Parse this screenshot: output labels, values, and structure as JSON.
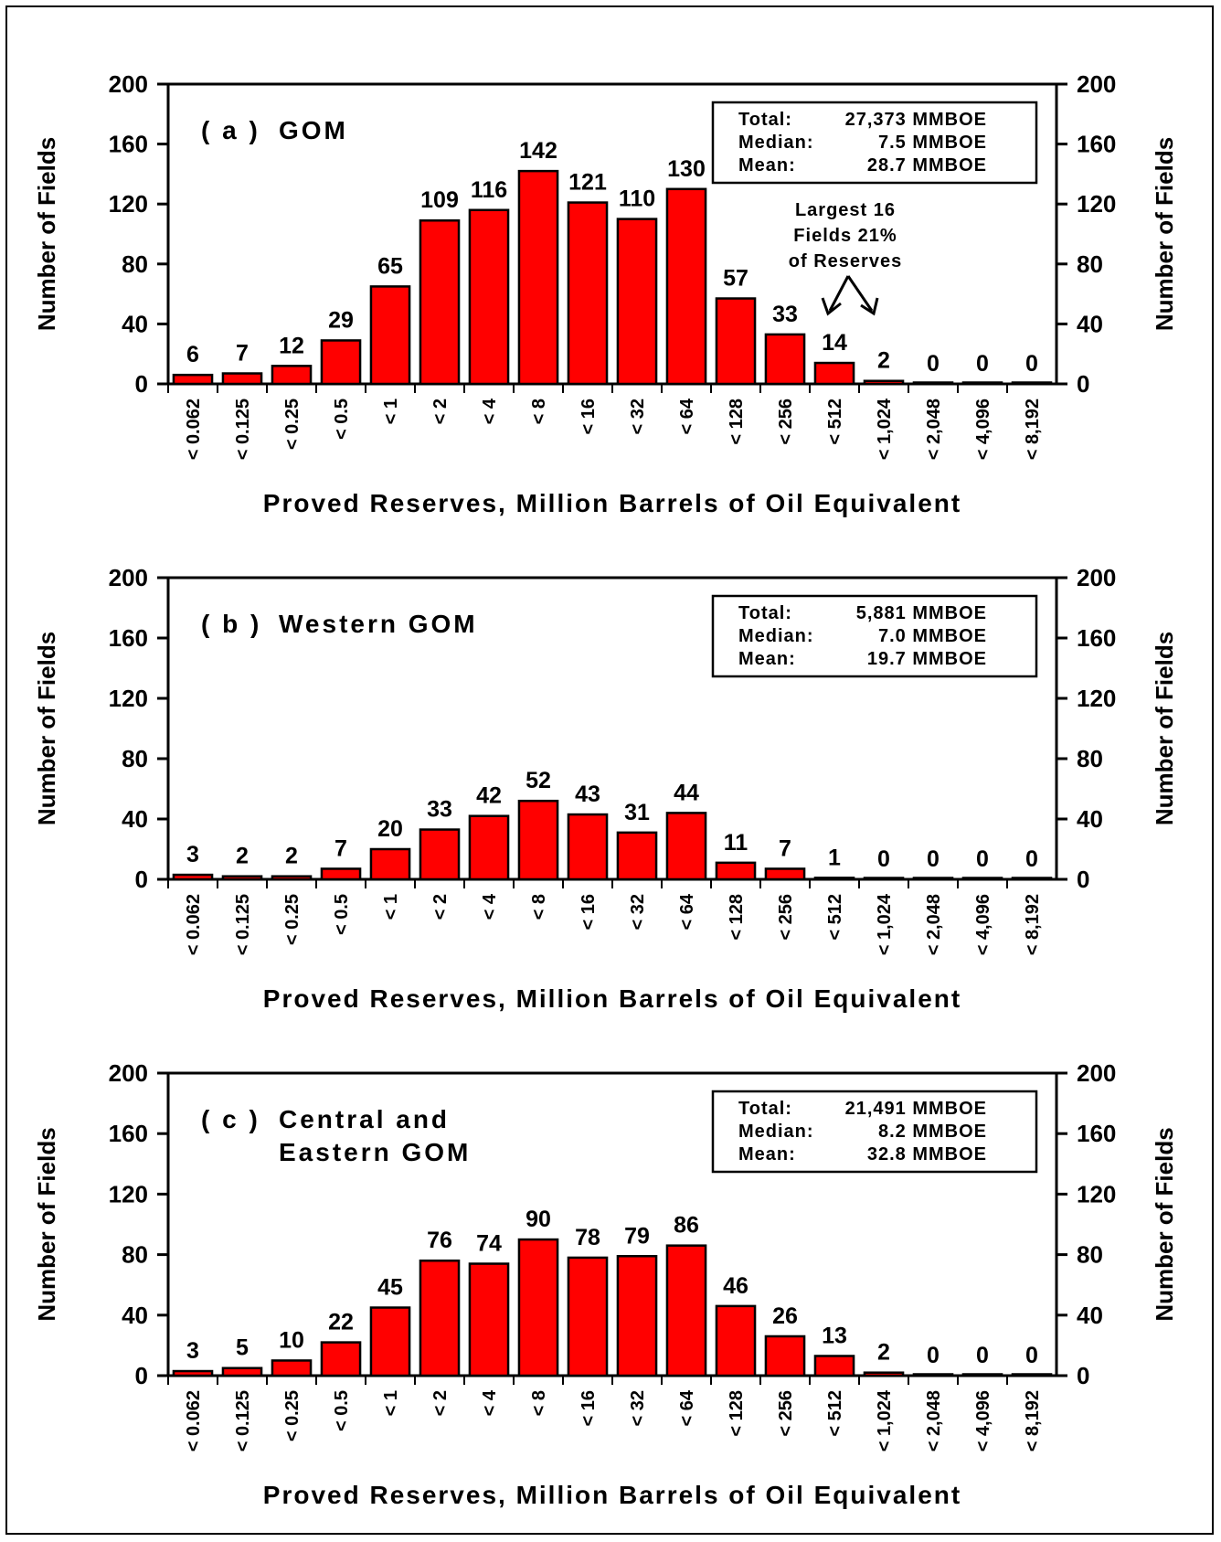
{
  "chart_data": [
    {
      "type": "bar",
      "panel_label": "( a )",
      "title_lines": [
        "GOM"
      ],
      "categories": [
        "< 0.062",
        "< 0.125",
        "< 0.25",
        "< 0.5",
        "< 1",
        "< 2",
        "< 4",
        "< 8",
        "< 16",
        "< 32",
        "< 64",
        "< 128",
        "< 256",
        "< 512",
        "< 1,024",
        "< 2,048",
        "< 4,096",
        "< 8,192"
      ],
      "values": [
        6,
        7,
        12,
        29,
        65,
        109,
        116,
        142,
        121,
        110,
        130,
        57,
        33,
        14,
        2,
        0,
        0,
        0
      ],
      "xlabel": "Proved Reserves, Million Barrels of Oil Equivalent",
      "ylabel": "Number of Fields",
      "ylabel_right": "Number of Fields",
      "ylim": [
        0,
        200
      ],
      "yticks": [
        "0",
        "40",
        "80",
        "120",
        "160",
        "200"
      ],
      "bar_color": "#ff0000",
      "stats": [
        {
          "label": "Total:",
          "value": "27,373 MMBOE"
        },
        {
          "label": "Median:",
          "value": "7.5 MMBOE"
        },
        {
          "label": "Mean:",
          "value": "28.7 MMBOE"
        }
      ],
      "annotation": [
        "Largest 16",
        "Fields 21%",
        "of Reserves"
      ]
    },
    {
      "type": "bar",
      "panel_label": "( b )",
      "title_lines": [
        "Western GOM"
      ],
      "categories": [
        "< 0.062",
        "< 0.125",
        "< 0.25",
        "< 0.5",
        "< 1",
        "< 2",
        "< 4",
        "< 8",
        "< 16",
        "< 32",
        "< 64",
        "< 128",
        "< 256",
        "< 512",
        "< 1,024",
        "< 2,048",
        "< 4,096",
        "< 8,192"
      ],
      "values": [
        3,
        2,
        2,
        7,
        20,
        33,
        42,
        52,
        43,
        31,
        44,
        11,
        7,
        1,
        0,
        0,
        0,
        0
      ],
      "xlabel": "Proved Reserves, Million Barrels of Oil Equivalent",
      "ylabel": "Number of Fields",
      "ylabel_right": "Number of Fields",
      "ylim": [
        0,
        200
      ],
      "yticks": [
        "0",
        "40",
        "80",
        "120",
        "160",
        "200"
      ],
      "bar_color": "#ff0000",
      "stats": [
        {
          "label": "Total:",
          "value": "5,881 MMBOE"
        },
        {
          "label": "Median:",
          "value": "7.0 MMBOE"
        },
        {
          "label": "Mean:",
          "value": "19.7 MMBOE"
        }
      ]
    },
    {
      "type": "bar",
      "panel_label": "( c )",
      "title_lines": [
        "Central    and",
        "Eastern GOM"
      ],
      "categories": [
        "< 0.062",
        "< 0.125",
        "< 0.25",
        "< 0.5",
        "< 1",
        "< 2",
        "< 4",
        "< 8",
        "< 16",
        "< 32",
        "< 64",
        "< 128",
        "< 256",
        "< 512",
        "< 1,024",
        "< 2,048",
        "< 4,096",
        "< 8,192"
      ],
      "values": [
        3,
        5,
        10,
        22,
        45,
        76,
        74,
        90,
        78,
        79,
        86,
        46,
        26,
        13,
        2,
        0,
        0,
        0
      ],
      "xlabel": "Proved Reserves, Million Barrels of Oil Equivalent",
      "ylabel": "Number of Fields",
      "ylabel_right": "Number of Fields",
      "ylim": [
        0,
        200
      ],
      "yticks": [
        "0",
        "40",
        "80",
        "120",
        "160",
        "200"
      ],
      "bar_color": "#ff0000",
      "stats": [
        {
          "label": "Total:",
          "value": "21,491 MMBOE"
        },
        {
          "label": "Median:",
          "value": "8.2 MMBOE"
        },
        {
          "label": "Mean:",
          "value": "32.8 MMBOE"
        }
      ]
    }
  ]
}
